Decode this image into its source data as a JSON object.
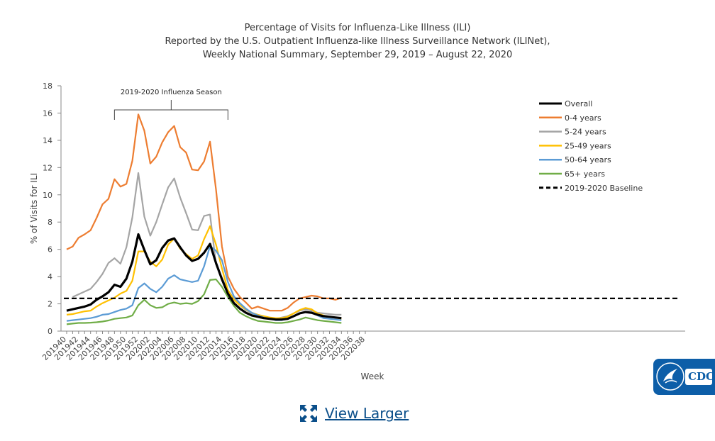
{
  "chart_data": {
    "type": "line",
    "title": [
      "Percentage of Visits for Influenza-Like Illness (ILI)",
      "Reported by the U.S. Outpatient Influenza-like Illness Surveillance Network (ILINet),",
      "Weekly National Summary, September 29, 2019 – August 22, 2020"
    ],
    "xlabel": "Week",
    "ylabel": "% of Visits for ILI",
    "ylim": [
      0,
      18
    ],
    "yticks": [
      0,
      2,
      4,
      6,
      8,
      10,
      12,
      14,
      16,
      18
    ],
    "xticks": [
      "201940",
      "201942",
      "201944",
      "201946",
      "201948",
      "201950",
      "201952",
      "202002",
      "202004",
      "202006",
      "202008",
      "202010",
      "202012",
      "202014",
      "202016",
      "202018",
      "202020",
      "202022",
      "202024",
      "202026",
      "202028",
      "202030",
      "202032",
      "202034",
      "202036",
      "202038"
    ],
    "weeks": [
      "201940",
      "201941",
      "201942",
      "201943",
      "201944",
      "201945",
      "201946",
      "201947",
      "201948",
      "201949",
      "201950",
      "201951",
      "201952",
      "202001",
      "202002",
      "202003",
      "202004",
      "202005",
      "202006",
      "202007",
      "202008",
      "202009",
      "202010",
      "202011",
      "202012",
      "202013",
      "202014",
      "202015",
      "202016",
      "202017",
      "202018",
      "202019",
      "202020",
      "202021",
      "202022",
      "202023",
      "202024",
      "202025",
      "202026",
      "202027",
      "202028",
      "202029",
      "202030",
      "202031",
      "202032",
      "202033",
      "202034",
      "202035",
      "202036",
      "202037",
      "202038"
    ],
    "annotation": "2019-2020 Influenza Season",
    "season_bracket": [
      "201948",
      "202015"
    ],
    "grid": false,
    "legend_position": "right",
    "series": [
      {
        "name": "Overall",
        "color": "#000000",
        "values": [
          1.5,
          1.6,
          1.7,
          1.8,
          1.95,
          2.3,
          2.55,
          2.85,
          3.4,
          3.25,
          3.85,
          5.1,
          7.1,
          5.95,
          4.9,
          5.2,
          6.1,
          6.65,
          6.8,
          6.15,
          5.55,
          5.15,
          5.3,
          5.75,
          6.4,
          5.0,
          3.8,
          2.75,
          2.05,
          1.65,
          1.35,
          1.15,
          1.05,
          0.95,
          0.9,
          0.85,
          0.85,
          0.9,
          1.1,
          1.3,
          1.4,
          1.35,
          1.2,
          1.1,
          1.05,
          1.0,
          0.95
        ]
      },
      {
        "name": "0-4 years",
        "color": "#ed7d31",
        "values": [
          6.0,
          6.2,
          6.85,
          7.1,
          7.4,
          8.3,
          9.3,
          9.7,
          11.15,
          10.6,
          10.8,
          12.5,
          15.9,
          14.7,
          12.3,
          12.8,
          13.85,
          14.6,
          15.05,
          13.5,
          13.1,
          11.85,
          11.8,
          12.45,
          13.9,
          10.4,
          6.2,
          4.0,
          3.1,
          2.5,
          2.1,
          1.65,
          1.8,
          1.65,
          1.5,
          1.5,
          1.5,
          1.7,
          2.1,
          2.4,
          2.5,
          2.6,
          2.55,
          2.4,
          2.4,
          2.3,
          2.45
        ]
      },
      {
        "name": "5-24 years",
        "color": "#a5a5a5",
        "values": [
          null,
          2.5,
          2.7,
          2.9,
          3.1,
          3.6,
          4.2,
          5.0,
          5.35,
          4.95,
          6.15,
          8.35,
          11.6,
          8.4,
          7.0,
          8.0,
          9.3,
          10.55,
          11.2,
          9.8,
          8.65,
          7.45,
          7.4,
          8.45,
          8.55,
          4.9,
          3.9,
          3.0,
          2.4,
          1.9,
          1.55,
          1.3,
          1.2,
          1.05,
          1.0,
          0.9,
          1.0,
          1.1,
          1.3,
          1.5,
          1.6,
          1.5,
          1.35,
          1.3,
          1.25,
          1.2,
          1.2
        ]
      },
      {
        "name": "25-49 years",
        "color": "#ffc000",
        "values": [
          1.2,
          1.25,
          1.35,
          1.45,
          1.5,
          1.8,
          2.05,
          2.25,
          2.45,
          2.75,
          2.95,
          3.7,
          5.85,
          5.85,
          5.1,
          4.75,
          5.25,
          6.35,
          6.8,
          6.05,
          5.65,
          5.3,
          5.55,
          6.75,
          7.7,
          6.35,
          4.6,
          3.0,
          2.3,
          1.9,
          1.6,
          1.35,
          1.2,
          1.1,
          1.0,
          0.95,
          0.95,
          1.05,
          1.3,
          1.55,
          1.7,
          1.6,
          1.3,
          1.15,
          1.05,
          1.0,
          0.9
        ]
      },
      {
        "name": "50-64 years",
        "color": "#5b9bd5",
        "values": [
          0.75,
          0.8,
          0.85,
          0.9,
          0.95,
          1.05,
          1.2,
          1.25,
          1.4,
          1.55,
          1.65,
          1.9,
          3.15,
          3.5,
          3.1,
          2.85,
          3.25,
          3.85,
          4.1,
          3.8,
          3.7,
          3.6,
          3.7,
          4.75,
          6.25,
          5.9,
          5.2,
          3.6,
          2.55,
          2.05,
          1.65,
          1.35,
          1.15,
          1.0,
          0.9,
          0.8,
          0.8,
          0.9,
          1.1,
          1.3,
          1.4,
          1.35,
          1.15,
          0.95,
          0.9,
          0.85,
          0.8
        ]
      },
      {
        "name": "65+ years",
        "color": "#70ad47",
        "values": [
          0.5,
          0.55,
          0.6,
          0.6,
          0.62,
          0.65,
          0.7,
          0.78,
          0.9,
          0.95,
          1.0,
          1.15,
          1.9,
          2.3,
          1.9,
          1.7,
          1.75,
          2.0,
          2.1,
          2.0,
          2.05,
          2.0,
          2.2,
          2.7,
          3.75,
          3.8,
          3.25,
          2.5,
          1.85,
          1.35,
          1.1,
          0.9,
          0.75,
          0.7,
          0.65,
          0.6,
          0.6,
          0.65,
          0.75,
          0.85,
          1.0,
          0.9,
          0.8,
          0.75,
          0.7,
          0.65,
          0.6
        ]
      },
      {
        "name": "2019-2020 Baseline",
        "color": "#000000",
        "dashed": true,
        "baseline": 2.4
      }
    ]
  },
  "logo": {
    "text": "CDC"
  },
  "link": {
    "label": "View Larger",
    "icon": "expand-icon"
  }
}
